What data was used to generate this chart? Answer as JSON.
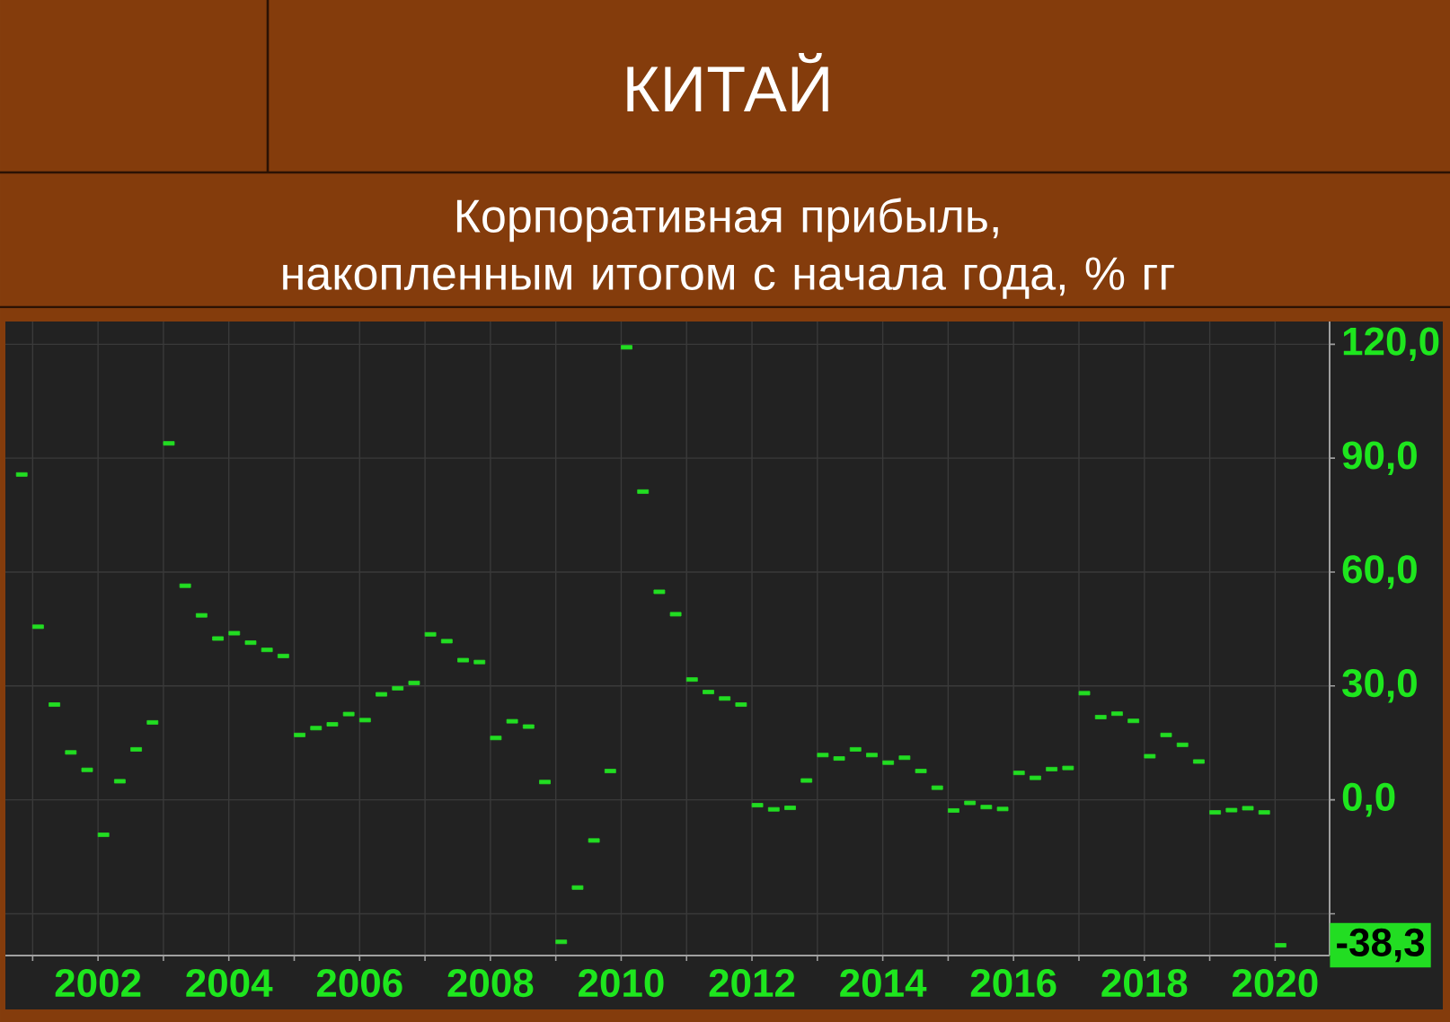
{
  "chart_data": {
    "type": "scatter",
    "title": "КИТАЙ",
    "subtitle": "Корпоративная прибыль, накопленным итогом с начала года, % гг",
    "x": [
      "2000-11",
      "2001-02",
      "2001-05",
      "2001-08",
      "2001-11",
      "2002-02",
      "2002-05",
      "2002-08",
      "2002-11",
      "2003-02",
      "2003-05",
      "2003-08",
      "2003-11",
      "2004-02",
      "2004-05",
      "2004-08",
      "2004-11",
      "2005-02",
      "2005-05",
      "2005-08",
      "2005-11",
      "2006-02",
      "2006-05",
      "2006-08",
      "2006-11",
      "2007-02",
      "2007-05",
      "2007-08",
      "2007-11",
      "2008-02",
      "2008-05",
      "2008-08",
      "2008-11",
      "2009-02",
      "2009-05",
      "2009-08",
      "2009-11",
      "2010-02",
      "2010-05",
      "2010-08",
      "2010-11",
      "2011-02",
      "2011-05",
      "2011-08",
      "2011-11",
      "2012-02",
      "2012-05",
      "2012-08",
      "2012-11",
      "2013-02",
      "2013-05",
      "2013-08",
      "2013-11",
      "2014-02",
      "2014-05",
      "2014-08",
      "2014-11",
      "2015-02",
      "2015-05",
      "2015-08",
      "2015-11",
      "2016-02",
      "2016-05",
      "2016-08",
      "2016-11",
      "2017-02",
      "2017-05",
      "2017-08",
      "2017-11",
      "2018-02",
      "2018-05",
      "2018-08",
      "2018-11",
      "2019-02",
      "2019-05",
      "2019-08",
      "2019-11",
      "2020-02"
    ],
    "series": [
      {
        "color": "#22dd22",
        "values": [
          85.7,
          45.6,
          25.1,
          12.5,
          7.9,
          -9.2,
          4.9,
          13.3,
          20.4,
          93.9,
          56.4,
          48.6,
          42.5,
          43.9,
          41.4,
          39.5,
          37.9,
          17.1,
          18.9,
          19.9,
          22.6,
          21.0,
          27.8,
          29.4,
          30.8,
          43.6,
          41.8,
          36.8,
          36.3,
          16.3,
          20.7,
          19.3,
          4.7,
          -37.4,
          -23.1,
          -10.7,
          7.6,
          119.2,
          81.2,
          54.8,
          48.9,
          31.7,
          28.4,
          26.7,
          25.1,
          -1.4,
          -2.5,
          -2.1,
          5.1,
          11.8,
          10.9,
          13.3,
          11.8,
          9.8,
          11.1,
          7.6,
          3.2,
          -2.8,
          -0.8,
          -1.9,
          -2.4,
          7.1,
          5.8,
          8.1,
          8.4,
          28.1,
          21.8,
          22.7,
          20.8,
          11.5,
          17.1,
          14.5,
          10.1,
          -3.3,
          -2.7,
          -2.2,
          -3.3,
          -38.3
        ],
        "value_labels": [
          null,
          null,
          null,
          null,
          null,
          null,
          null,
          null,
          null,
          null,
          null,
          null,
          null,
          null,
          null,
          null,
          null,
          null,
          null,
          null,
          null,
          null,
          null,
          null,
          null,
          null,
          null,
          null,
          null,
          null,
          null,
          null,
          null,
          null,
          null,
          null,
          null,
          null,
          null,
          null,
          null,
          null,
          null,
          null,
          null,
          null,
          null,
          null,
          null,
          null,
          null,
          null,
          null,
          null,
          null,
          null,
          null,
          null,
          null,
          null,
          null,
          null,
          null,
          null,
          null,
          null,
          null,
          null,
          null,
          null,
          null,
          null,
          null,
          null,
          null,
          null,
          null,
          "-38,3"
        ]
      }
    ],
    "xlim": [
      "2000-08",
      "2020-11"
    ],
    "xticks": [
      {
        "value": "2001",
        "label": null
      },
      "2002",
      {
        "value": "2003",
        "label": null
      },
      "2004",
      {
        "value": "2005",
        "label": null
      },
      "2006",
      {
        "value": "2007",
        "label": null
      },
      "2008",
      {
        "value": "2009",
        "label": null
      },
      "2010",
      {
        "value": "2011",
        "label": null
      },
      "2012",
      {
        "value": "2013",
        "label": null
      },
      "2014",
      {
        "value": "2015",
        "label": null
      },
      "2016",
      {
        "value": "2017",
        "label": null
      },
      "2018",
      {
        "value": "2019",
        "label": null
      },
      "2020"
    ],
    "ylim": [
      -41,
      126
    ],
    "yticks": [
      {
        "value": -30,
        "label": null
      },
      {
        "value": 0,
        "label": "0,0"
      },
      {
        "value": 30,
        "label": "30,0"
      },
      {
        "value": 60,
        "label": "60,0"
      },
      {
        "value": 90,
        "label": "90,0"
      },
      {
        "value": 120,
        "label": "120,0"
      }
    ],
    "grid": true,
    "marker": "square"
  }
}
